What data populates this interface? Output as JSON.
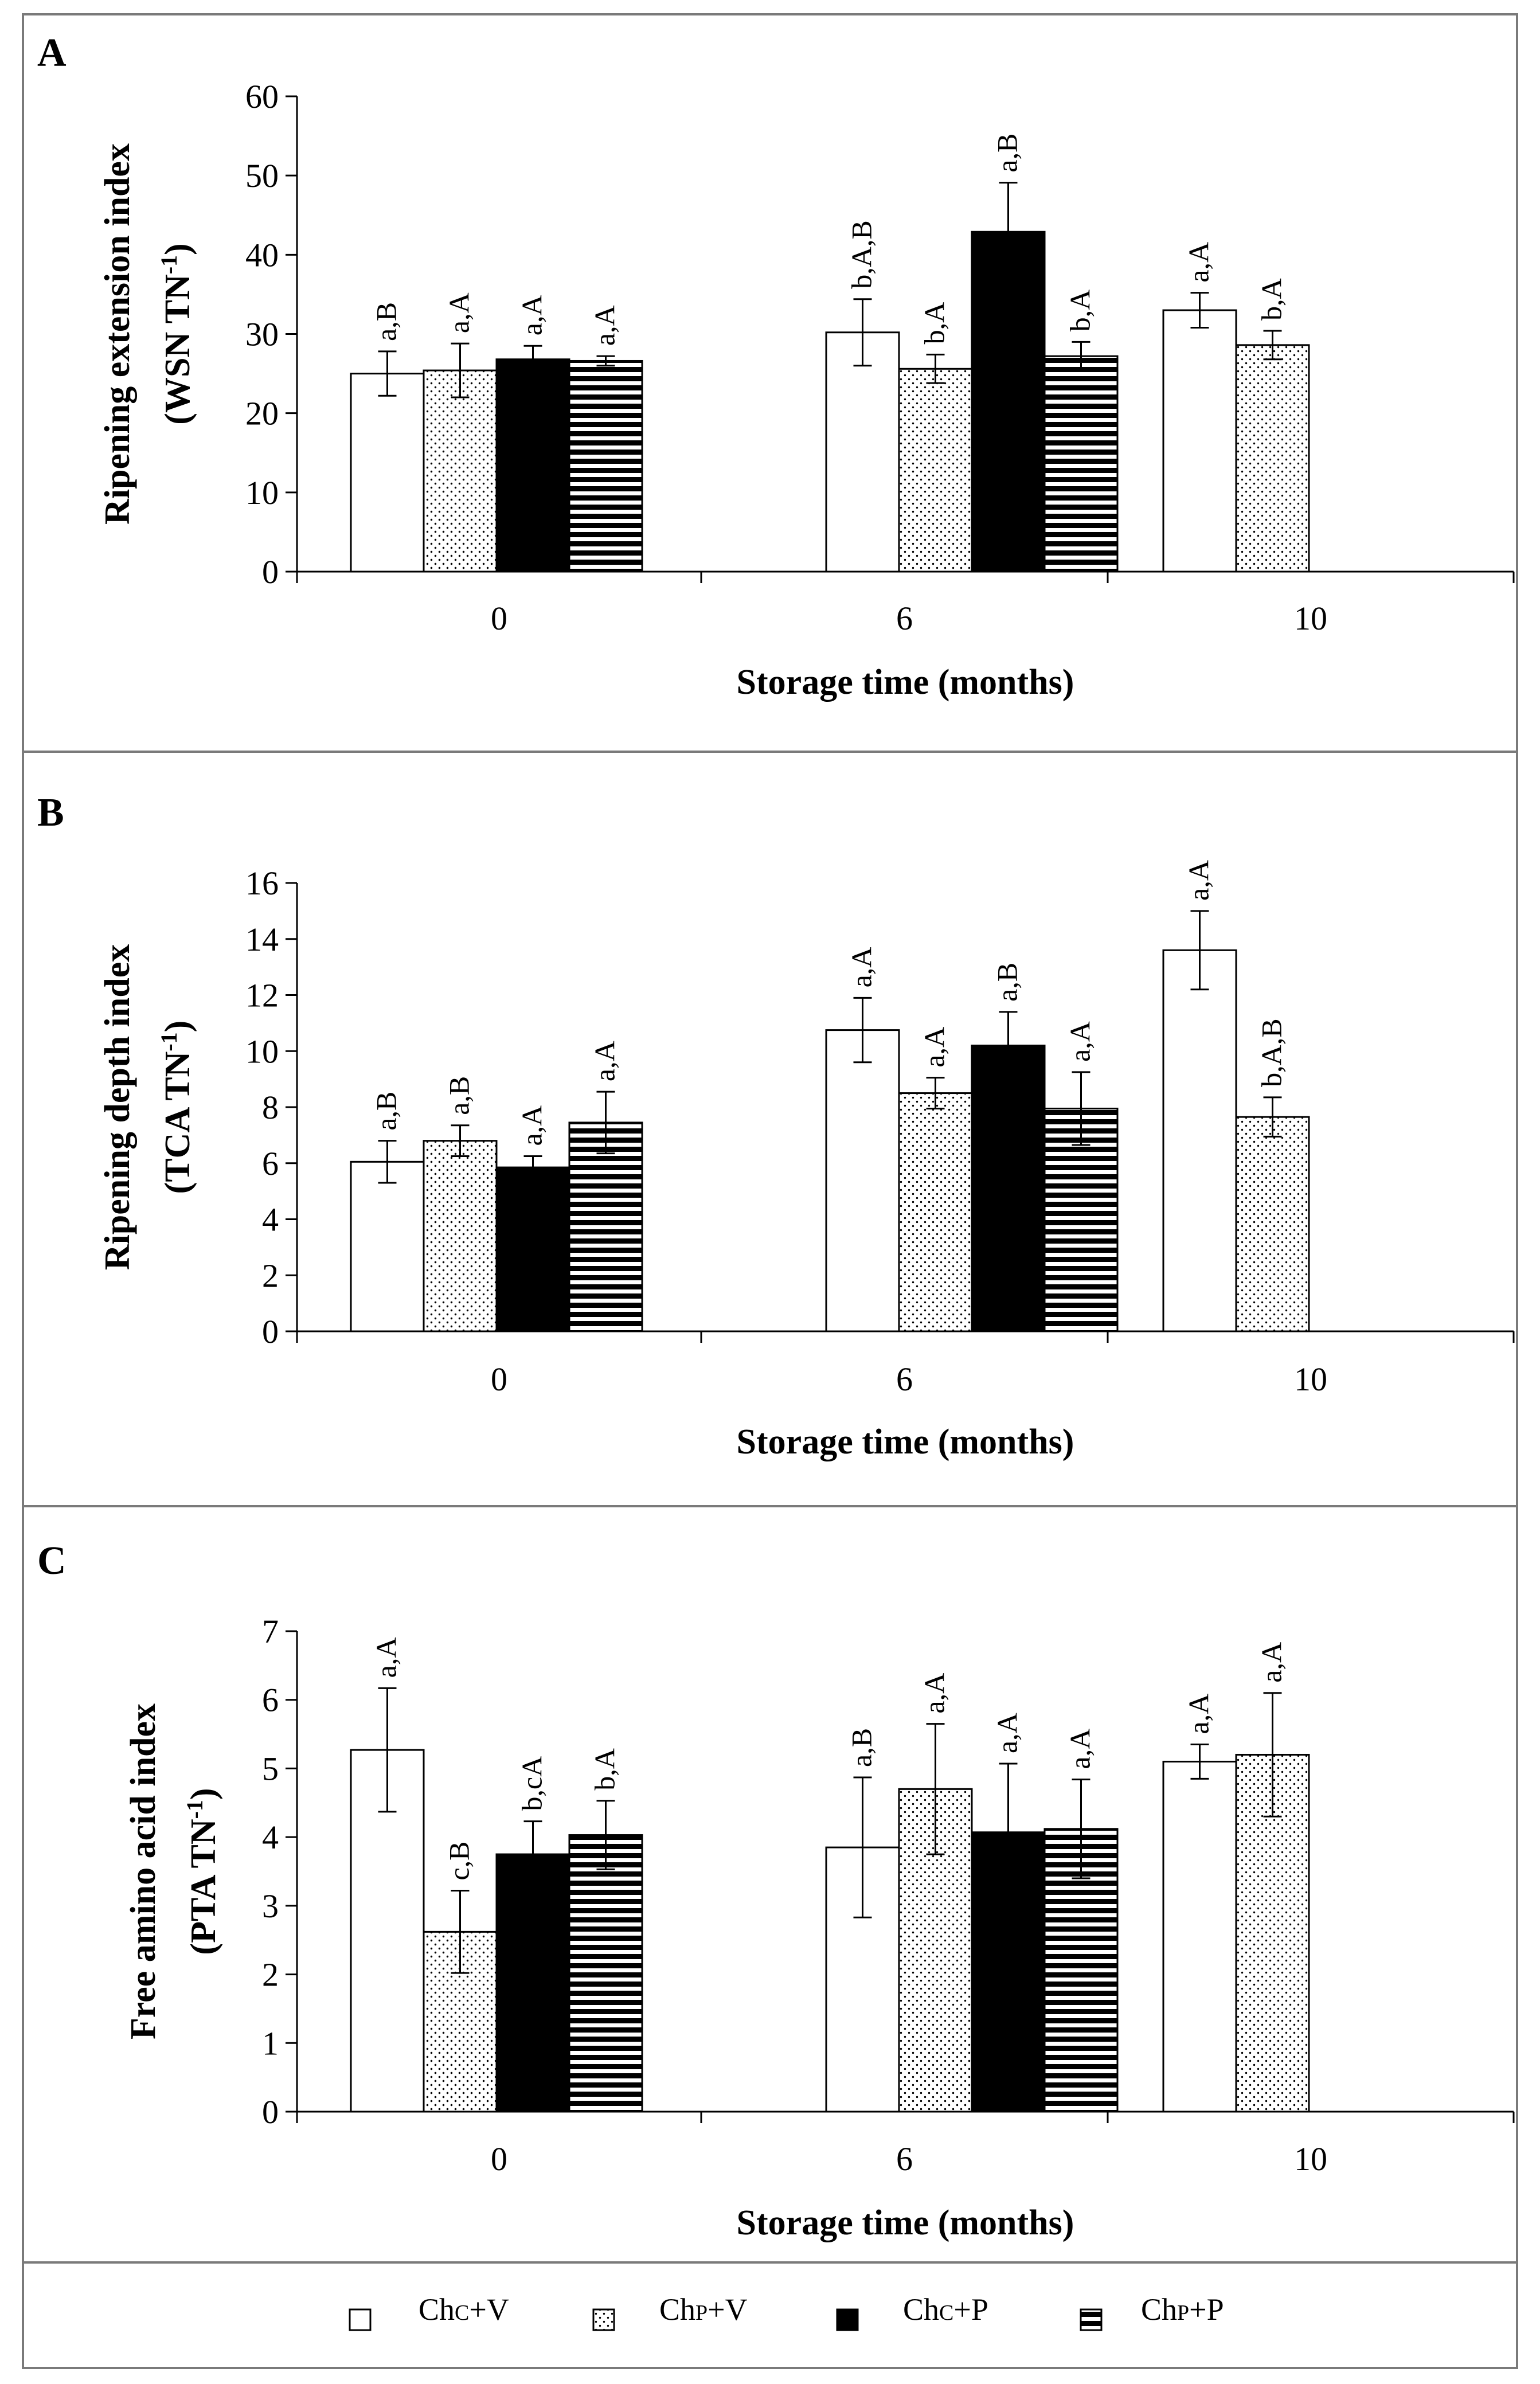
{
  "figure": {
    "x_axis_title": "Storage time (months)",
    "legend": [
      {
        "id": "chc_v",
        "base": "Ch",
        "sub": "C",
        "suffix": "+V",
        "pattern": "white"
      },
      {
        "id": "chp_v",
        "base": "Ch",
        "sub": "P",
        "suffix": "+V",
        "pattern": "dots"
      },
      {
        "id": "chc_p",
        "base": "Ch",
        "sub": "C",
        "suffix": "+P",
        "pattern": "black"
      },
      {
        "id": "chp_p",
        "base": "Ch",
        "sub": "P",
        "suffix": "+P",
        "pattern": "stripes"
      }
    ]
  },
  "chart_data": [
    {
      "type": "bar",
      "panel": "A",
      "ylabel_line1": "Ripening extension index",
      "ylabel_line2_main": "(WSN TN",
      "ylabel_line2_sup": "-1",
      "ylabel_line2_end": ")",
      "xlabel": "Storage time (months)",
      "categories": [
        "0",
        "6",
        "10"
      ],
      "ylim": [
        0,
        60
      ],
      "yticks": [
        0,
        10,
        20,
        30,
        40,
        50,
        60
      ],
      "series": [
        {
          "name": "ChC+V",
          "values": [
            25,
            30.2,
            33
          ],
          "errors": [
            2.8,
            4.2,
            2.2
          ],
          "labels": [
            "a,B",
            "b,A,B",
            "a,A"
          ]
        },
        {
          "name": "ChP+V",
          "values": [
            25.4,
            25.6,
            28.6
          ],
          "errors": [
            3.4,
            1.8,
            1.8
          ],
          "labels": [
            "a,A",
            "b,A",
            "b,A"
          ]
        },
        {
          "name": "ChC+P",
          "values": [
            26.8,
            42.9,
            null
          ],
          "errors": [
            1.7,
            6.2,
            null
          ],
          "labels": [
            "a,A",
            "a,B",
            null
          ]
        },
        {
          "name": "ChP+P",
          "values": [
            26.6,
            27.2,
            null
          ],
          "errors": [
            0.6,
            1.8,
            null
          ],
          "labels": [
            "a,A",
            "b,A",
            null
          ]
        }
      ]
    },
    {
      "type": "bar",
      "panel": "B",
      "ylabel_line1": "Ripening depth index",
      "ylabel_line2_main": "(TCA TN",
      "ylabel_line2_sup": "-1",
      "ylabel_line2_end": ")",
      "xlabel": "Storage time (months)",
      "categories": [
        "0",
        "6",
        "10"
      ],
      "ylim": [
        0,
        16
      ],
      "yticks": [
        0,
        2,
        4,
        6,
        8,
        10,
        12,
        14,
        16
      ],
      "series": [
        {
          "name": "ChC+V",
          "values": [
            6.05,
            10.75,
            13.6
          ],
          "errors": [
            0.75,
            1.15,
            1.4
          ],
          "labels": [
            "a,B",
            "a,A",
            "a,A"
          ]
        },
        {
          "name": "ChP+V",
          "values": [
            6.8,
            8.5,
            7.65
          ],
          "errors": [
            0.55,
            0.55,
            0.7
          ],
          "labels": [
            "a,B",
            "a,A",
            "b,A,B"
          ]
        },
        {
          "name": "ChC+P",
          "values": [
            5.85,
            10.2,
            null
          ],
          "errors": [
            0.4,
            1.2,
            null
          ],
          "labels": [
            "a,A",
            "a,B",
            null
          ]
        },
        {
          "name": "ChP+P",
          "values": [
            7.45,
            7.95,
            null
          ],
          "errors": [
            1.1,
            1.3,
            null
          ],
          "labels": [
            "a,A",
            "a,A",
            null
          ]
        }
      ]
    },
    {
      "type": "bar",
      "panel": "C",
      "ylabel_line1": "Free amino acid index",
      "ylabel_line2_main": "(PTA TN",
      "ylabel_line2_sup": "-1",
      "ylabel_line2_end": ")",
      "xlabel": "Storage time (months)",
      "categories": [
        "0",
        "6",
        "10"
      ],
      "ylim": [
        0,
        7
      ],
      "yticks": [
        0,
        1,
        2,
        3,
        4,
        5,
        6,
        7
      ],
      "series": [
        {
          "name": "ChC+V",
          "values": [
            5.27,
            3.85,
            5.1
          ],
          "errors": [
            0.9,
            1.02,
            0.25
          ],
          "labels": [
            "a,A",
            "a,B",
            "a,A"
          ]
        },
        {
          "name": "ChP+V",
          "values": [
            2.62,
            4.7,
            5.2
          ],
          "errors": [
            0.6,
            0.95,
            0.9
          ],
          "labels": [
            "c,B",
            "a,A",
            "a,A"
          ]
        },
        {
          "name": "ChC+P",
          "values": [
            3.75,
            4.07,
            null
          ],
          "errors": [
            0.48,
            1.0,
            null
          ],
          "labels": [
            "b,cA",
            "a,A",
            null
          ]
        },
        {
          "name": "ChP+P",
          "values": [
            4.03,
            4.12,
            null
          ],
          "errors": [
            0.5,
            0.72,
            null
          ],
          "labels": [
            "b,A",
            "a,A",
            null
          ]
        }
      ]
    }
  ]
}
